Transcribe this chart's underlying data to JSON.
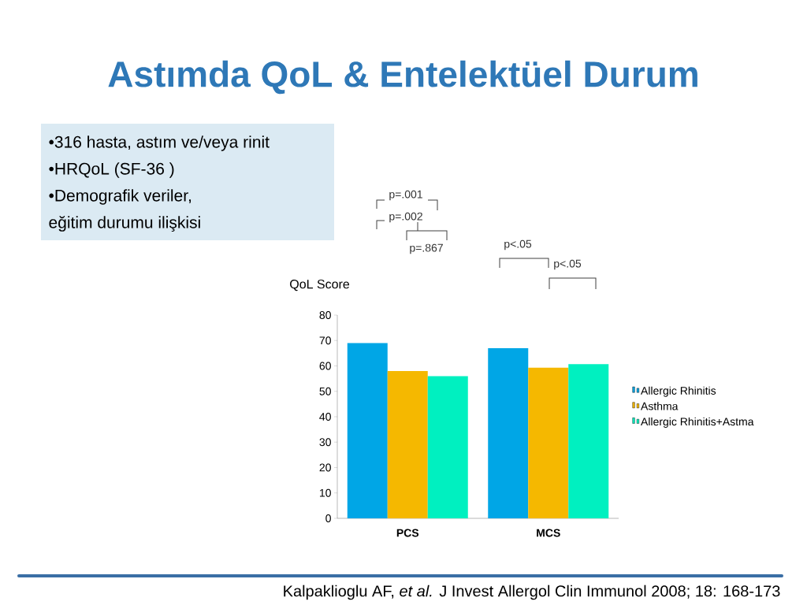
{
  "chart_data": {
    "type": "bar",
    "title": "Astımda QoL & Entelektüel Durum",
    "ylabel": "QoL Score",
    "categories": [
      "PCS",
      "MCS"
    ],
    "series": [
      {
        "name": "Allergic Rhinitis",
        "color": "#00a6e6",
        "values": [
          69,
          67
        ]
      },
      {
        "name": "Asthma",
        "color": "#f5b800",
        "values": [
          58,
          59.3
        ]
      },
      {
        "name": "Allergic Rhinitis+Astma",
        "color": "#00f0c0",
        "values": [
          56,
          60.7
        ]
      }
    ],
    "ylim": [
      0,
      80
    ],
    "yticks": [
      0,
      10,
      20,
      30,
      40,
      50,
      60,
      70,
      80
    ],
    "legend": "right",
    "annotations": [
      "•316 hasta, astım ve/veya rinit",
      "•HRQoL (SF-36 )",
      "•Demografik veriler,",
      "eğitim durumu ilişkisi",
      "p=.001",
      "p=.002",
      "p=.867",
      "p<.05",
      "p<.05",
      "Kalpaklioglu AF, *et al.* J Invest Allergol Clin Immunol 2008; 18: 168-173"
    ]
  }
}
